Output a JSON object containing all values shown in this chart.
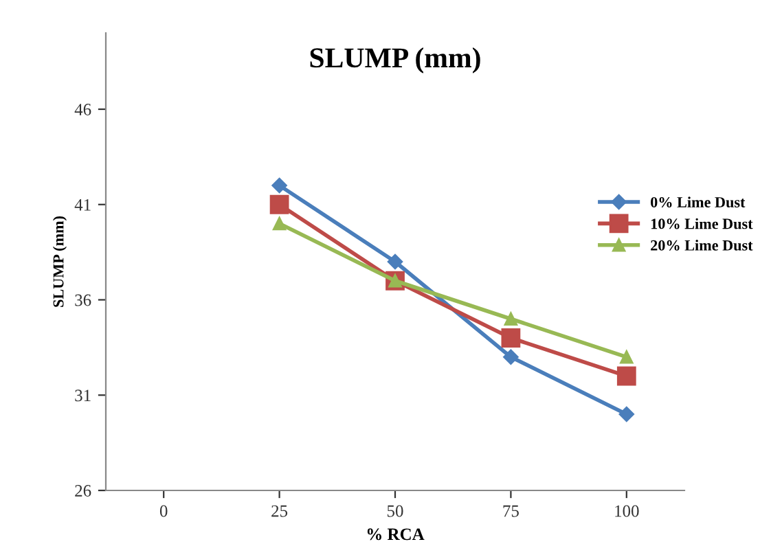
{
  "chart_data": {
    "type": "line",
    "title": "SLUMP (mm)",
    "xlabel": "% RCA",
    "ylabel": "SLUMP (mm)",
    "categories": [
      "0",
      "25",
      "50",
      "75",
      "100"
    ],
    "series": [
      {
        "name": "0% Lime Dust",
        "color": "#4a7ebb",
        "marker": "diamond",
        "values": [
          null,
          42,
          38,
          33,
          30
        ]
      },
      {
        "name": "10% Lime Dust",
        "color": "#be4b48",
        "marker": "square",
        "values": [
          null,
          41,
          37,
          34,
          32
        ]
      },
      {
        "name": "20% Lime Dust",
        "color": "#98b954",
        "marker": "triangle",
        "values": [
          null,
          40,
          37,
          35,
          33
        ]
      }
    ],
    "ylim": [
      26,
      50
    ],
    "yticks": [
      26,
      31,
      36,
      41,
      46
    ],
    "grid": false,
    "legend": "right",
    "line_style": "solid"
  }
}
